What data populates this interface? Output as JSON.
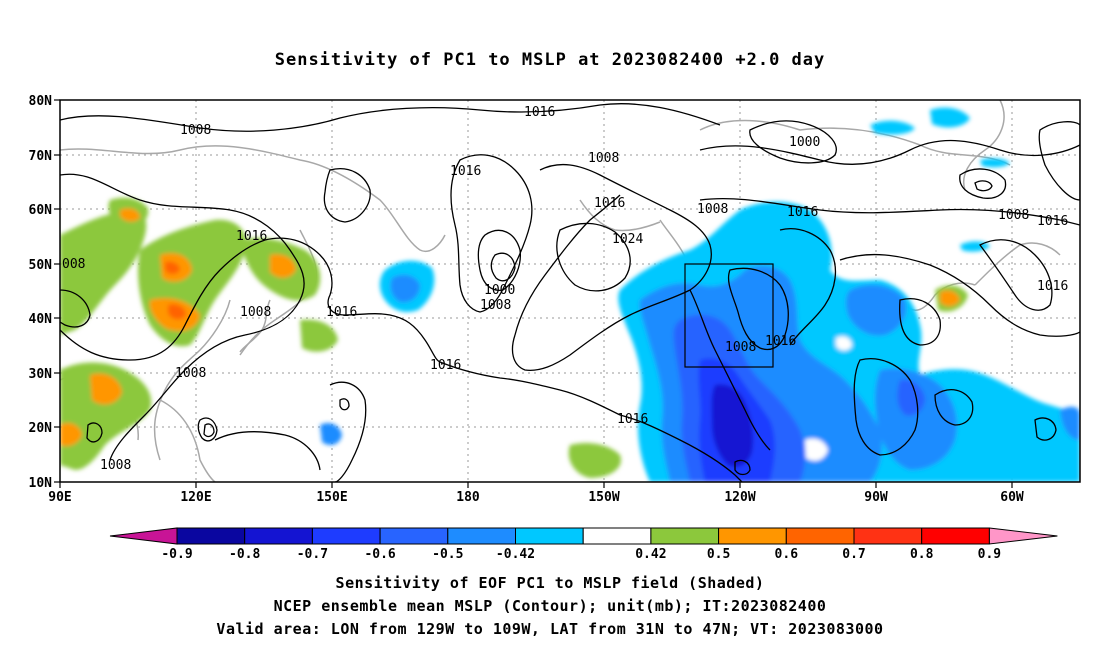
{
  "title": "Sensitivity of PC1 to MSLP at 2023082400 +2.0 day",
  "lat_labels": [
    "80N",
    "70N",
    "60N",
    "50N",
    "40N",
    "30N",
    "20N",
    "10N"
  ],
  "lon_labels": [
    "90E",
    "120E",
    "150E",
    "180",
    "150W",
    "120W",
    "90W",
    "60W"
  ],
  "colorbar": {
    "labels": [
      "-0.9",
      "-0.8",
      "-0.7",
      "-0.6",
      "-0.5",
      "-0.42",
      "0.42",
      "0.5",
      "0.6",
      "0.7",
      "0.8",
      "0.9"
    ],
    "colors": [
      "#0a06a0",
      "#1414d2",
      "#1e3cff",
      "#2864ff",
      "#1e8cff",
      "#00c8ff",
      "#ffffff",
      "#8cc83c",
      "#ff9600",
      "#ff6400",
      "#ff3214",
      "#ff0000"
    ],
    "under_color": "#c81496",
    "over_color": "#ff96c8"
  },
  "contour_labels": {
    "c1": "1008",
    "c2": "1016",
    "c3": "1016",
    "c4": "1008",
    "c5": "1000",
    "c6": "1016",
    "c7": "1016",
    "c8": "1016",
    "c9": "1008",
    "c10": "1016",
    "c11": "1008",
    "c12": "1024",
    "c13": "1000",
    "c14": "1008",
    "c15": "1016",
    "c16": "1016",
    "c17": "1008",
    "c18": "1016",
    "c19": "1016",
    "c20": "1016",
    "c21": "1008",
    "c22": "1008",
    "c23": "1008",
    "c24": "008"
  },
  "caption": {
    "line1": "Sensitivity of EOF PC1 to MSLP field (Shaded)",
    "line2": "NCEP ensemble mean MSLP (Contour); unit(mb); IT:2023082400",
    "line3": "Valid area: LON from 129W to 109W, LAT from 31N to 47N; VT: 2023083000"
  }
}
